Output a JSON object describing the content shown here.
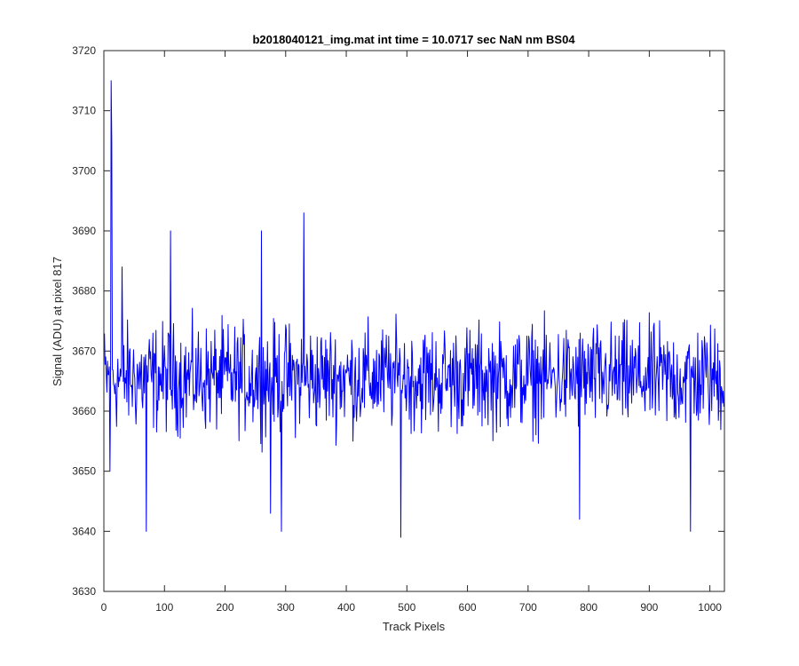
{
  "chart_data": {
    "type": "line",
    "title": "b2018040121_img.mat int time = 10.0717 sec  NaN nm BS04",
    "xlabel": "Track Pixels",
    "ylabel": "Signal (ADU) at pixel 817",
    "xlim": [
      0,
      1024
    ],
    "ylim": [
      3630,
      3720
    ],
    "xticks": [
      0,
      100,
      200,
      300,
      400,
      500,
      600,
      700,
      800,
      900,
      1000
    ],
    "yticks": [
      3630,
      3640,
      3650,
      3660,
      3670,
      3680,
      3690,
      3700,
      3710,
      3720
    ],
    "grid": false,
    "box": true,
    "line_color": "#0000ff",
    "series_summary": {
      "n_points": 1024,
      "mean": 3665.5,
      "noise_half_range": 10
    },
    "notable_points": [
      {
        "x": 0,
        "y": 3672
      },
      {
        "x": 10,
        "y": 3650
      },
      {
        "x": 12,
        "y": 3715
      },
      {
        "x": 13,
        "y": 3705
      },
      {
        "x": 30,
        "y": 3684
      },
      {
        "x": 70,
        "y": 3640
      },
      {
        "x": 110,
        "y": 3690
      },
      {
        "x": 260,
        "y": 3690
      },
      {
        "x": 275,
        "y": 3643
      },
      {
        "x": 293,
        "y": 3640
      },
      {
        "x": 330,
        "y": 3693
      },
      {
        "x": 490,
        "y": 3639
      },
      {
        "x": 785,
        "y": 3642
      },
      {
        "x": 968,
        "y": 3640
      }
    ]
  }
}
